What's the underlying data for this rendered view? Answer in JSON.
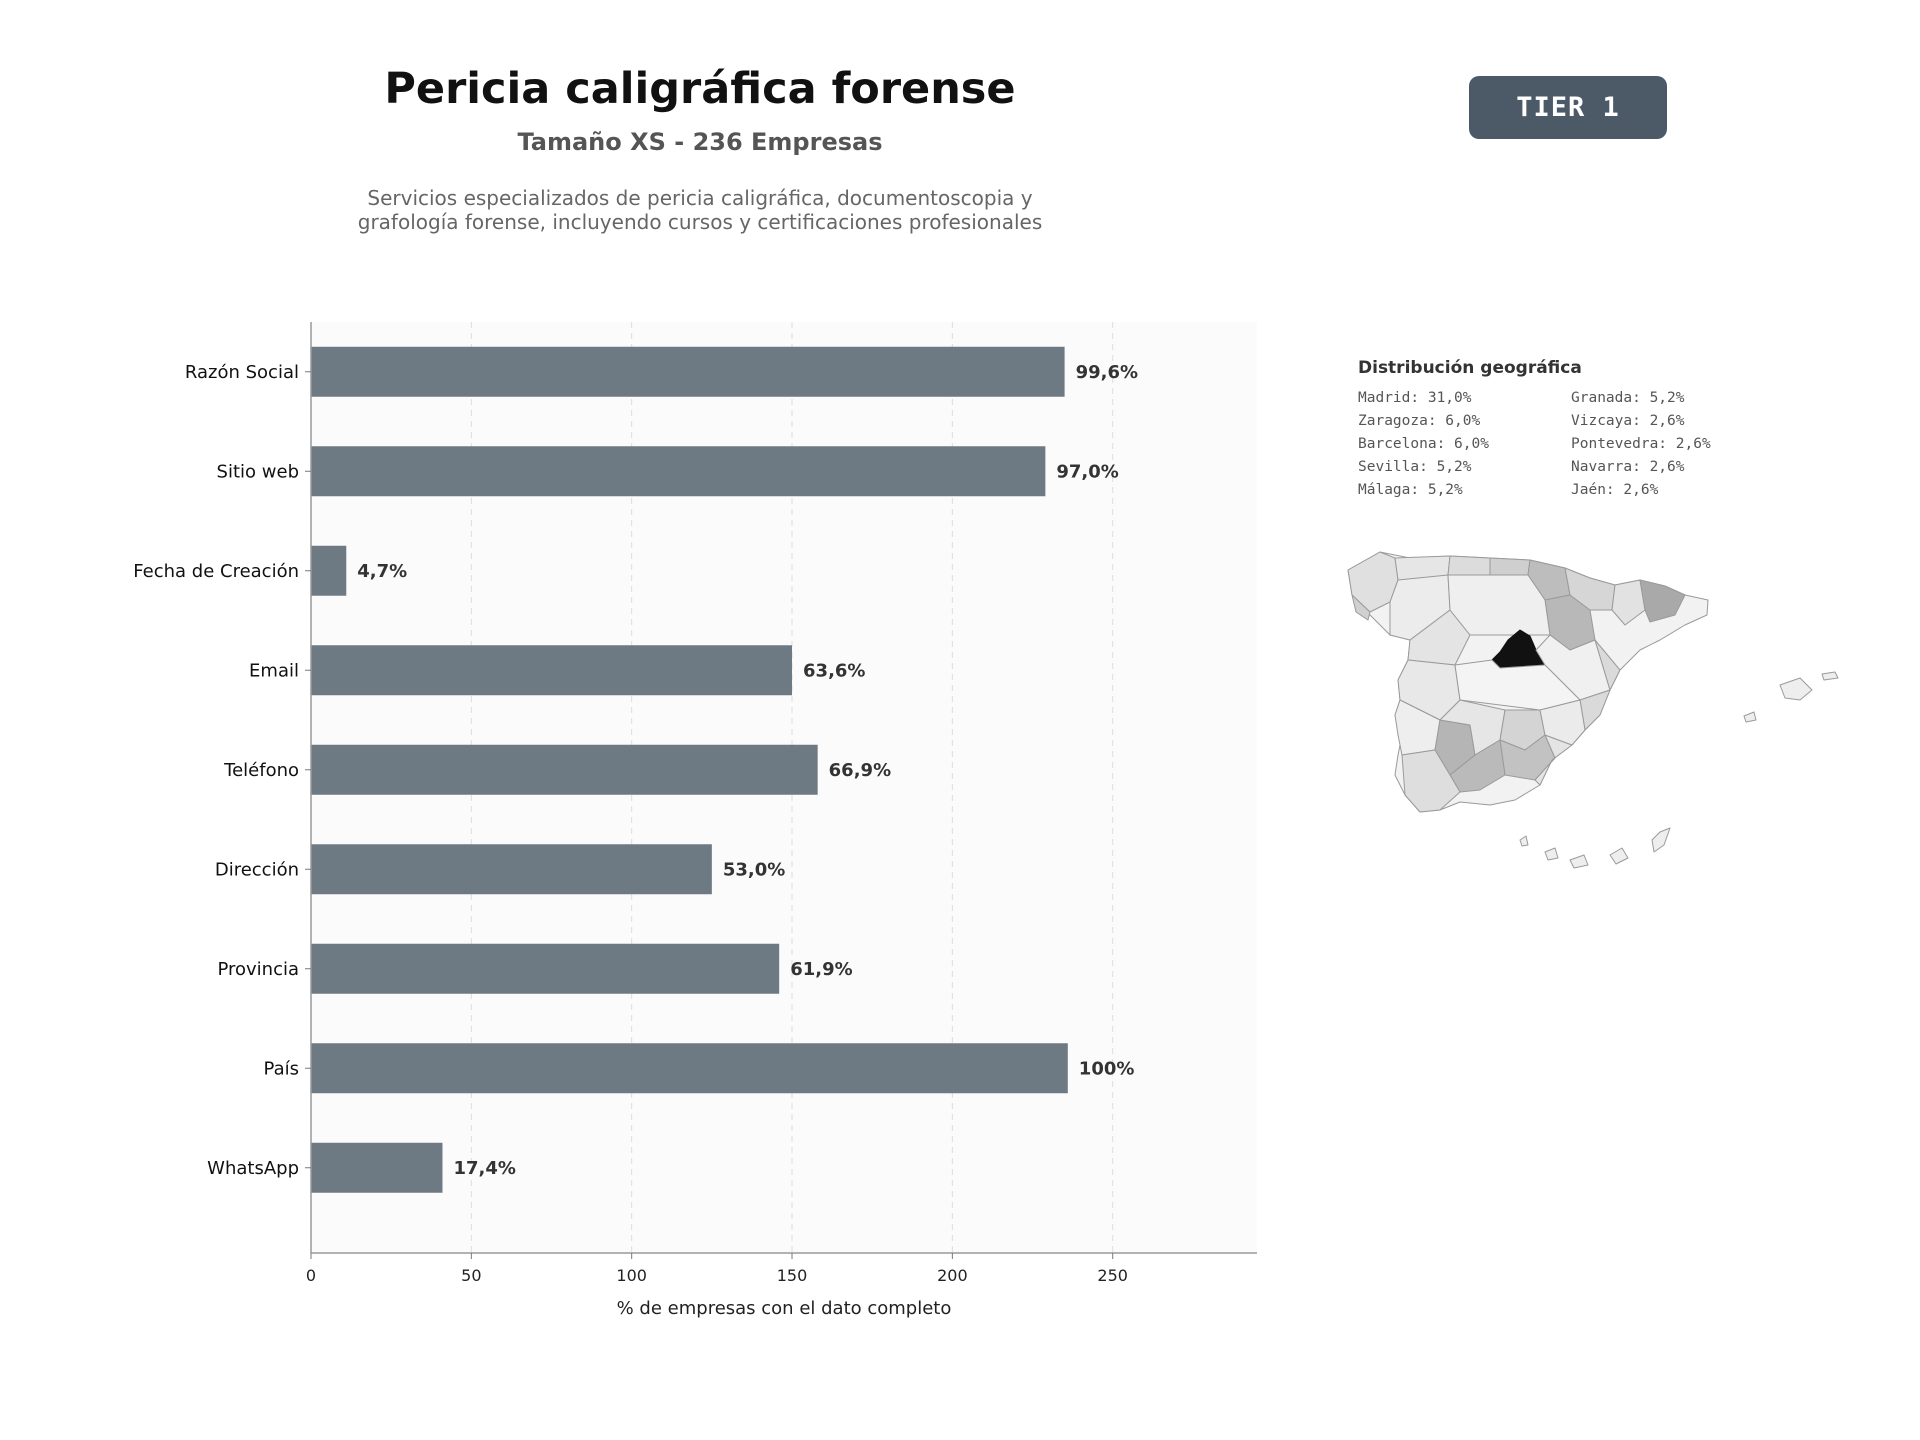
{
  "header": {
    "title": "Pericia caligráfica forense",
    "subtitle": "Tamaño XS - 236 Empresas",
    "description_line1": "Servicios especializados de pericia caligráfica, documentoscopia y",
    "description_line2": "grafología forense, incluyendo cursos y certificaciones profesionales",
    "tier_label": "TIER 1"
  },
  "chart_data": {
    "type": "bar",
    "orientation": "horizontal",
    "categories": [
      "Razón Social",
      "Sitio web",
      "Fecha de Creación",
      "Email",
      "Teléfono",
      "Dirección",
      "Provincia",
      "País",
      "WhatsApp"
    ],
    "values": [
      235,
      229,
      11,
      150,
      158,
      125,
      146,
      236,
      41
    ],
    "value_labels": [
      "99,6%",
      "97,0%",
      "4,7%",
      "63,6%",
      "66,9%",
      "53,0%",
      "61,9%",
      "100%",
      "17,4%"
    ],
    "xlabel": "% de empresas con el dato completo",
    "xlim": [
      0,
      295
    ],
    "xticks": [
      "0",
      "50",
      "100",
      "150",
      "200",
      "250"
    ],
    "grid": "vertical dashed",
    "bar_color": "#6e7a83"
  },
  "geo": {
    "title": "Distribución geográfica",
    "items": [
      "Madrid: 31,0%",
      "Granada: 5,2%",
      "Zaragoza: 6,0%",
      "Vizcaya: 2,6%",
      "Barcelona: 6,0%",
      "Pontevedra: 2,6%",
      "Sevilla: 5,2%",
      "Navarra: 2,6%",
      "Málaga: 5,2%",
      "Jaén: 2,6%"
    ],
    "highlight_region": "Madrid",
    "highlight_color": "#111111"
  }
}
